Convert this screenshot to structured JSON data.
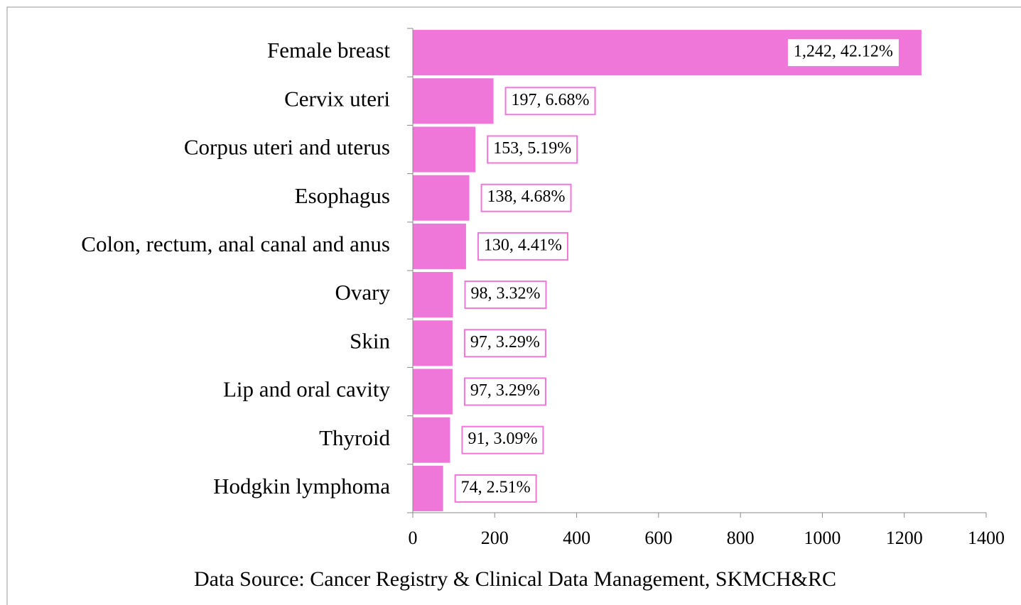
{
  "chart_data": {
    "type": "bar",
    "orientation": "horizontal",
    "categories": [
      "Female breast",
      "Cervix uteri",
      "Corpus uteri and uterus",
      "Esophagus",
      "Colon, rectum, anal canal and anus",
      "Ovary",
      "Skin",
      "Lip and oral cavity",
      "Thyroid",
      "Hodgkin lymphoma"
    ],
    "values": [
      1242,
      197,
      153,
      138,
      130,
      98,
      97,
      97,
      91,
      74
    ],
    "value_labels": [
      "1,242, 42.12%",
      "197, 6.68%",
      "153, 5.19%",
      "138, 4.68%",
      "130, 4.41%",
      "98, 3.32%",
      "97, 3.29%",
      "97, 3.29%",
      "91, 3.09%",
      "74, 2.51%"
    ],
    "color": "#ef77d9",
    "xlim": [
      0,
      1400
    ],
    "xticks": [
      0,
      200,
      400,
      600,
      800,
      1000,
      1200,
      1400
    ],
    "annotation": "Data Source: Cancer Registry & Clinical Data Management, SKMCH&RC"
  }
}
